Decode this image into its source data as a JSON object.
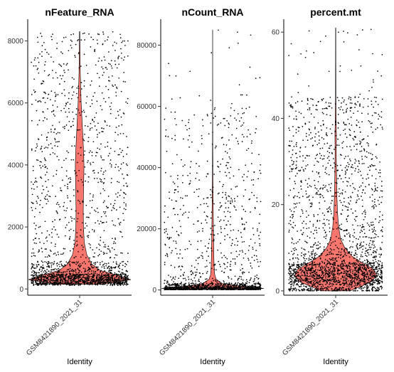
{
  "chart_data": [
    {
      "type": "violin",
      "title": "nFeature_RNA",
      "xlabel": "Identity",
      "ylabel": "",
      "categories": [
        "GSM8421890_2021_31"
      ],
      "ylim": [
        -200,
        8700
      ],
      "yticks": [
        0,
        2000,
        4000,
        6000,
        8000
      ],
      "fill_color": "#F8766D",
      "point_color": "#000000",
      "distribution": {
        "min": 100,
        "max": 8300,
        "bulk": [
          150,
          900
        ],
        "mode": 300,
        "tail": [
          1000,
          8000
        ]
      },
      "violin_profile": [
        [
          150,
          0.45
        ],
        [
          300,
          1.0
        ],
        [
          450,
          0.72
        ],
        [
          600,
          0.4
        ],
        [
          800,
          0.24
        ],
        [
          1100,
          0.14
        ],
        [
          1500,
          0.09
        ],
        [
          2000,
          0.075
        ],
        [
          2500,
          0.07
        ],
        [
          3000,
          0.075
        ],
        [
          3500,
          0.08
        ],
        [
          4000,
          0.085
        ],
        [
          4500,
          0.075
        ],
        [
          5000,
          0.06
        ],
        [
          5500,
          0.045
        ],
        [
          6000,
          0.03
        ],
        [
          6500,
          0.02
        ],
        [
          7000,
          0.012
        ],
        [
          7500,
          0.008
        ],
        [
          8000,
          0.006
        ],
        [
          8300,
          0.004
        ]
      ],
      "n_points": 2200
    },
    {
      "type": "violin",
      "title": "nCount_RNA",
      "xlabel": "Identity",
      "ylabel": "",
      "categories": [
        "GSM8421890_2021_31"
      ],
      "ylim": [
        -1700,
        88500
      ],
      "yticks": [
        0,
        20000,
        40000,
        60000,
        80000
      ],
      "fill_color": "#F8766D",
      "point_color": "#000000",
      "distribution": {
        "min": 100,
        "max": 85000,
        "bulk": [
          100,
          2000
        ],
        "mode": 500,
        "tail": [
          2000,
          60000
        ]
      },
      "violin_profile": [
        [
          100,
          0.6
        ],
        [
          500,
          1.0
        ],
        [
          1200,
          0.55
        ],
        [
          2000,
          0.2
        ],
        [
          3500,
          0.07
        ],
        [
          5000,
          0.04
        ],
        [
          7500,
          0.03
        ],
        [
          10000,
          0.025
        ],
        [
          15000,
          0.02
        ],
        [
          20000,
          0.016
        ],
        [
          25000,
          0.012
        ],
        [
          30000,
          0.009
        ],
        [
          35000,
          0.007
        ],
        [
          40000,
          0.005
        ],
        [
          47000,
          0.003
        ],
        [
          55000,
          0.002
        ],
        [
          70000,
          0.001
        ],
        [
          85000,
          0.001
        ]
      ],
      "n_points": 1700
    },
    {
      "type": "violin",
      "title": "percent.mt",
      "xlabel": "Identity",
      "ylabel": "",
      "categories": [
        "GSM8421890_2021_31"
      ],
      "ylim": [
        -1,
        63
      ],
      "yticks": [
        0,
        20,
        40,
        60
      ],
      "fill_color": "#F8766D",
      "point_color": "#000000",
      "distribution": {
        "min": 0,
        "max": 61,
        "bulk": [
          0,
          10
        ],
        "mode": 4,
        "tail": [
          10,
          45
        ]
      },
      "violin_profile": [
        [
          0,
          0.35
        ],
        [
          1,
          0.6
        ],
        [
          2,
          0.85
        ],
        [
          3.5,
          1.0
        ],
        [
          5,
          0.92
        ],
        [
          6.5,
          0.65
        ],
        [
          8,
          0.4
        ],
        [
          10,
          0.22
        ],
        [
          12,
          0.12
        ],
        [
          15,
          0.07
        ],
        [
          18,
          0.045
        ],
        [
          22,
          0.03
        ],
        [
          27,
          0.02
        ],
        [
          32,
          0.014
        ],
        [
          36,
          0.018
        ],
        [
          39,
          0.012
        ],
        [
          45,
          0.006
        ],
        [
          53,
          0.004
        ],
        [
          61,
          0.003
        ]
      ],
      "n_points": 2400
    }
  ]
}
